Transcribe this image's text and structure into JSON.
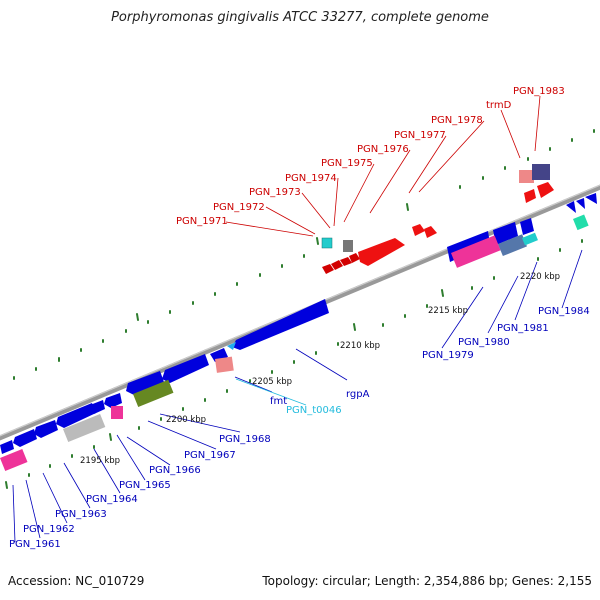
{
  "title": "Porphyromonas gingivalis ATCC 33277, complete genome",
  "footer": {
    "accession": "Accession: NC_010729",
    "info": "Topology: circular; Length: 2,354,886 bp; Genes: 2,155"
  },
  "colors": {
    "red": "#d20000",
    "blue": "#0000cc",
    "cyan": "#22bbdd",
    "black": "#111111",
    "backbone": "#888888",
    "tick": "#2e7d2e"
  },
  "scale_labels": [
    "2195 kbp",
    "2200 kbp",
    "2205 kbp",
    "2210 kbp",
    "2215 kbp",
    "2220 kbp"
  ],
  "gene_labels": {
    "top_red": [
      "PGN_1971",
      "PGN_1972",
      "PGN_1973",
      "PGN_1974",
      "PGN_1975",
      "PGN_1976",
      "PGN_1977",
      "PGN_1978",
      "trmD",
      "PGN_1983"
    ],
    "right_blue": [
      "PGN_1979",
      "PGN_1980",
      "PGN_1981",
      "PGN_1984"
    ],
    "bottom_blue": [
      "rgpA",
      "fmt",
      "PGN_1968",
      "PGN_1967",
      "PGN_1966",
      "PGN_1965",
      "PGN_1964",
      "PGN_1963",
      "PGN_1962",
      "PGN_1961"
    ],
    "trna": "PGN_t0046"
  }
}
